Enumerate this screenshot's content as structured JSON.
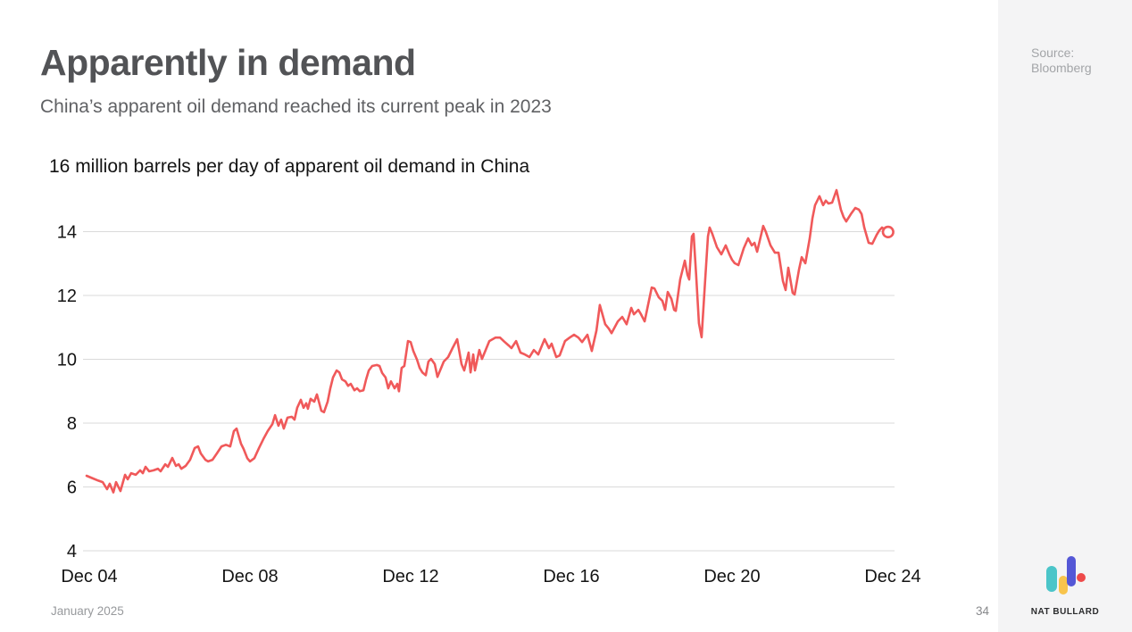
{
  "slide": {
    "title": "Apparently in demand",
    "subtitle": "China’s apparent oil demand reached its current peak in 2023",
    "footer_date": "January 2025",
    "page_number": "34"
  },
  "sidebar": {
    "source_label": "Source:",
    "source_value": "Bloomberg",
    "logo_text": "NAT BULLARD",
    "logo_colors": {
      "teal": "#4bc5c9",
      "yellow": "#f8c44c",
      "indigo": "#5457d6",
      "red": "#ee4a4a"
    }
  },
  "chart_data": {
    "type": "line",
    "title": "16 million barrels per day of apparent oil demand in China",
    "series_name": "China apparent oil demand, million barrels per day",
    "line_color": "#f0595a",
    "grid_color": "#dadada",
    "label_color": "#141414",
    "x_ticks": [
      {
        "label": "Dec 04",
        "month": 0
      },
      {
        "label": "Dec 08",
        "month": 48
      },
      {
        "label": "Dec 12",
        "month": 96
      },
      {
        "label": "Dec 16",
        "month": 144
      },
      {
        "label": "Dec 20",
        "month": 192
      },
      {
        "label": "Dec 24",
        "month": 240
      }
    ],
    "y_ticks": [
      4,
      6,
      8,
      10,
      12,
      14
    ],
    "y_top_label": "16",
    "ylim": [
      4,
      16.4
    ],
    "xlim_months": [
      -1,
      241
    ],
    "legend": "none",
    "grid": "horizontal",
    "points": [
      [
        -0.8,
        6.35
      ],
      [
        0.8,
        6.28
      ],
      [
        2.7,
        6.2
      ],
      [
        4,
        6.15
      ],
      [
        5.3,
        5.93
      ],
      [
        6.1,
        6.1
      ],
      [
        7.2,
        5.83
      ],
      [
        8,
        6.15
      ],
      [
        9.3,
        5.87
      ],
      [
        10.7,
        6.38
      ],
      [
        11.5,
        6.24
      ],
      [
        12.5,
        6.43
      ],
      [
        13.9,
        6.38
      ],
      [
        15.2,
        6.52
      ],
      [
        16,
        6.43
      ],
      [
        16.8,
        6.63
      ],
      [
        17.9,
        6.49
      ],
      [
        19.2,
        6.52
      ],
      [
        20.5,
        6.57
      ],
      [
        21.3,
        6.49
      ],
      [
        22.7,
        6.71
      ],
      [
        23.5,
        6.63
      ],
      [
        24.8,
        6.91
      ],
      [
        25.9,
        6.66
      ],
      [
        26.7,
        6.71
      ],
      [
        27.5,
        6.57
      ],
      [
        28.8,
        6.66
      ],
      [
        30.1,
        6.85
      ],
      [
        31.5,
        7.22
      ],
      [
        32.5,
        7.27
      ],
      [
        33.3,
        7.05
      ],
      [
        34.7,
        6.85
      ],
      [
        35.5,
        6.8
      ],
      [
        36.8,
        6.85
      ],
      [
        38.1,
        7.05
      ],
      [
        39.5,
        7.27
      ],
      [
        40.8,
        7.32
      ],
      [
        42.1,
        7.27
      ],
      [
        43.2,
        7.75
      ],
      [
        44,
        7.83
      ],
      [
        45.3,
        7.36
      ],
      [
        46.1,
        7.19
      ],
      [
        47.2,
        6.9
      ],
      [
        48,
        6.8
      ],
      [
        49.3,
        6.9
      ],
      [
        50.7,
        7.22
      ],
      [
        52,
        7.5
      ],
      [
        53.3,
        7.75
      ],
      [
        54.7,
        7.97
      ],
      [
        55.5,
        8.25
      ],
      [
        56.5,
        7.92
      ],
      [
        57.3,
        8.11
      ],
      [
        58.1,
        7.83
      ],
      [
        59.2,
        8.17
      ],
      [
        60.5,
        8.2
      ],
      [
        61.3,
        8.11
      ],
      [
        62.1,
        8.48
      ],
      [
        63.2,
        8.73
      ],
      [
        64,
        8.48
      ],
      [
        64.8,
        8.62
      ],
      [
        65.3,
        8.45
      ],
      [
        66.1,
        8.76
      ],
      [
        67.2,
        8.67
      ],
      [
        68,
        8.9
      ],
      [
        69.3,
        8.39
      ],
      [
        70.1,
        8.34
      ],
      [
        71.2,
        8.67
      ],
      [
        72,
        9.09
      ],
      [
        72.8,
        9.43
      ],
      [
        73.9,
        9.65
      ],
      [
        74.7,
        9.59
      ],
      [
        75.5,
        9.37
      ],
      [
        76.5,
        9.31
      ],
      [
        77.3,
        9.17
      ],
      [
        78.1,
        9.23
      ],
      [
        79.2,
        9.03
      ],
      [
        80,
        9.09
      ],
      [
        80.8,
        9.0
      ],
      [
        81.9,
        9.03
      ],
      [
        82.7,
        9.37
      ],
      [
        83.5,
        9.65
      ],
      [
        84.5,
        9.79
      ],
      [
        85.9,
        9.82
      ],
      [
        86.7,
        9.79
      ],
      [
        87.5,
        9.57
      ],
      [
        88.5,
        9.43
      ],
      [
        89.3,
        9.09
      ],
      [
        90.1,
        9.31
      ],
      [
        91.2,
        9.09
      ],
      [
        92,
        9.23
      ],
      [
        92.5,
        9.0
      ],
      [
        93.3,
        9.73
      ],
      [
        94.1,
        9.79
      ],
      [
        95.2,
        10.57
      ],
      [
        96,
        10.54
      ],
      [
        96.8,
        10.26
      ],
      [
        97.9,
        9.99
      ],
      [
        98.7,
        9.73
      ],
      [
        99.5,
        9.59
      ],
      [
        100.5,
        9.5
      ],
      [
        101.3,
        9.93
      ],
      [
        102.1,
        10.01
      ],
      [
        103.2,
        9.85
      ],
      [
        104,
        9.45
      ],
      [
        105.9,
        9.93
      ],
      [
        107.2,
        10.07
      ],
      [
        108.5,
        10.35
      ],
      [
        109.9,
        10.63
      ],
      [
        111.2,
        9.85
      ],
      [
        112,
        9.65
      ],
      [
        113.3,
        10.21
      ],
      [
        113.9,
        9.59
      ],
      [
        114.7,
        10.15
      ],
      [
        115.2,
        9.65
      ],
      [
        116.5,
        10.29
      ],
      [
        117.3,
        10.01
      ],
      [
        119.5,
        10.57
      ],
      [
        121.3,
        10.68
      ],
      [
        122.7,
        10.68
      ],
      [
        124,
        10.55
      ],
      [
        125.3,
        10.43
      ],
      [
        126.1,
        10.35
      ],
      [
        127.5,
        10.57
      ],
      [
        128.8,
        10.21
      ],
      [
        130.1,
        10.15
      ],
      [
        131.5,
        10.07
      ],
      [
        132.8,
        10.29
      ],
      [
        134.1,
        10.15
      ],
      [
        136,
        10.63
      ],
      [
        137.3,
        10.35
      ],
      [
        138.1,
        10.49
      ],
      [
        139.5,
        10.07
      ],
      [
        140.5,
        10.12
      ],
      [
        142.1,
        10.57
      ],
      [
        143.5,
        10.68
      ],
      [
        144.8,
        10.77
      ],
      [
        146.1,
        10.68
      ],
      [
        147.2,
        10.54
      ],
      [
        148.8,
        10.77
      ],
      [
        150.1,
        10.26
      ],
      [
        151.5,
        10.9
      ],
      [
        152.5,
        11.7
      ],
      [
        153.3,
        11.4
      ],
      [
        154.1,
        11.1
      ],
      [
        155.2,
        10.96
      ],
      [
        156,
        10.82
      ],
      [
        157.9,
        11.19
      ],
      [
        159.2,
        11.33
      ],
      [
        160.5,
        11.1
      ],
      [
        161.9,
        11.61
      ],
      [
        162.7,
        11.41
      ],
      [
        164,
        11.55
      ],
      [
        164.8,
        11.41
      ],
      [
        165.9,
        11.19
      ],
      [
        166.9,
        11.7
      ],
      [
        168,
        12.25
      ],
      [
        168.8,
        12.22
      ],
      [
        170.1,
        11.94
      ],
      [
        171.2,
        11.83
      ],
      [
        172,
        11.55
      ],
      [
        172.8,
        12.11
      ],
      [
        173.9,
        11.89
      ],
      [
        174.7,
        11.55
      ],
      [
        175.2,
        11.52
      ],
      [
        176.5,
        12.5
      ],
      [
        177.9,
        13.09
      ],
      [
        178.7,
        12.64
      ],
      [
        179.2,
        12.5
      ],
      [
        180,
        13.85
      ],
      [
        180.5,
        13.93
      ],
      [
        181.3,
        12.59
      ],
      [
        182.1,
        11.13
      ],
      [
        182.9,
        10.69
      ],
      [
        184,
        12.53
      ],
      [
        184.8,
        13.85
      ],
      [
        185.3,
        14.13
      ],
      [
        186.1,
        13.93
      ],
      [
        187.5,
        13.51
      ],
      [
        188.8,
        13.29
      ],
      [
        190.1,
        13.57
      ],
      [
        191.2,
        13.29
      ],
      [
        192,
        13.12
      ],
      [
        192.8,
        13.01
      ],
      [
        193.9,
        12.95
      ],
      [
        195.5,
        13.48
      ],
      [
        196.8,
        13.79
      ],
      [
        197.9,
        13.57
      ],
      [
        198.7,
        13.65
      ],
      [
        199.5,
        13.37
      ],
      [
        201.3,
        14.18
      ],
      [
        202.1,
        13.99
      ],
      [
        203.5,
        13.57
      ],
      [
        204.8,
        13.34
      ],
      [
        205.9,
        13.34
      ],
      [
        207.2,
        12.45
      ],
      [
        208,
        12.17
      ],
      [
        208.8,
        12.87
      ],
      [
        210.1,
        12.08
      ],
      [
        210.7,
        12.03
      ],
      [
        212,
        12.81
      ],
      [
        212.8,
        13.2
      ],
      [
        213.9,
        13.01
      ],
      [
        215.2,
        13.79
      ],
      [
        216,
        14.41
      ],
      [
        216.8,
        14.83
      ],
      [
        218.1,
        15.11
      ],
      [
        219.2,
        14.83
      ],
      [
        220,
        14.97
      ],
      [
        220.8,
        14.88
      ],
      [
        221.9,
        14.91
      ],
      [
        223.2,
        15.3
      ],
      [
        224.5,
        14.69
      ],
      [
        225.3,
        14.46
      ],
      [
        226.1,
        14.32
      ],
      [
        227.5,
        14.55
      ],
      [
        228.8,
        14.74
      ],
      [
        229.9,
        14.69
      ],
      [
        230.7,
        14.55
      ],
      [
        231.5,
        14.13
      ],
      [
        232.8,
        13.65
      ],
      [
        233.9,
        13.62
      ],
      [
        235.2,
        13.9
      ],
      [
        236,
        14.04
      ],
      [
        236.8,
        14.13
      ],
      [
        237.8,
        14.05
      ]
    ],
    "end_marker": [
      238.6,
      13.99
    ]
  }
}
